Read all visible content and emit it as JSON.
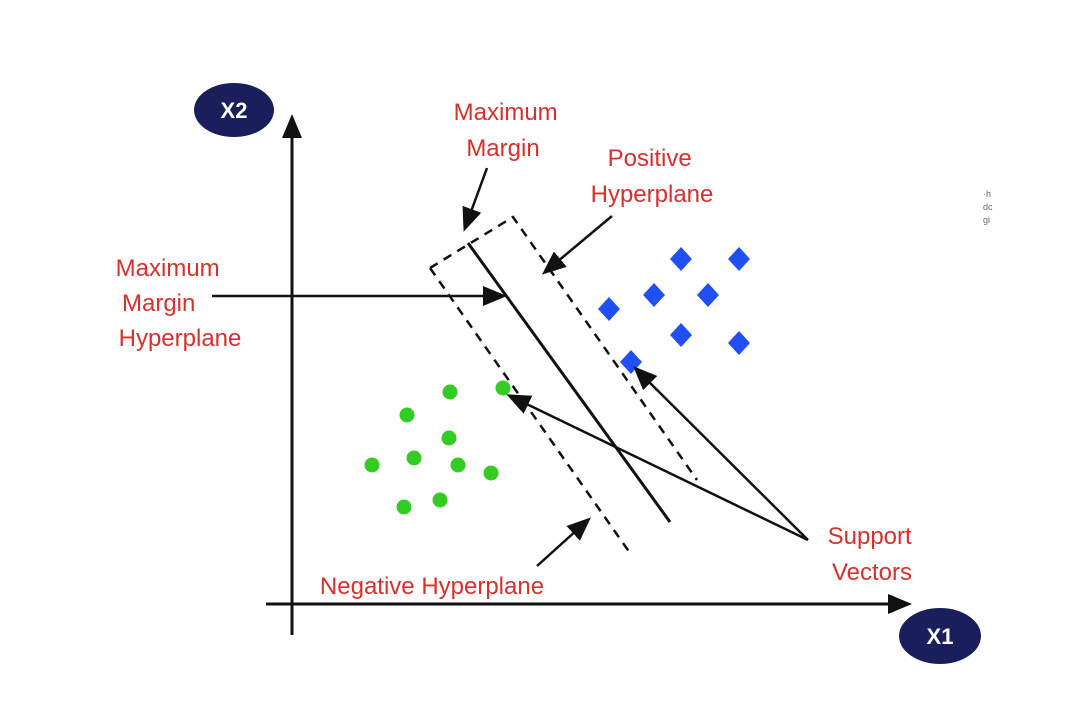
{
  "axes": {
    "x_label": "X1",
    "y_label": "X2",
    "badge_color": "#1a1f5c"
  },
  "labels": {
    "maximum_margin": [
      "Maximum",
      "Margin"
    ],
    "positive_hyperplane": [
      "Positive",
      "Hyperplane"
    ],
    "maximum_margin_hyperplane": [
      "Maximum",
      "Margin",
      "Hyperplane"
    ],
    "negative_hyperplane": "Negative Hyperplane",
    "support_vectors": [
      "Support",
      "Vectors"
    ]
  },
  "colors": {
    "label_text": "#d8312b",
    "positive_points": "#1f4ff5",
    "negative_points": "#33cc22",
    "lines": "#111111"
  },
  "point_shapes": {
    "positive_class": "diamond",
    "negative_class": "circle"
  },
  "side_marks": [
    "·h",
    "dc",
    "gi"
  ]
}
